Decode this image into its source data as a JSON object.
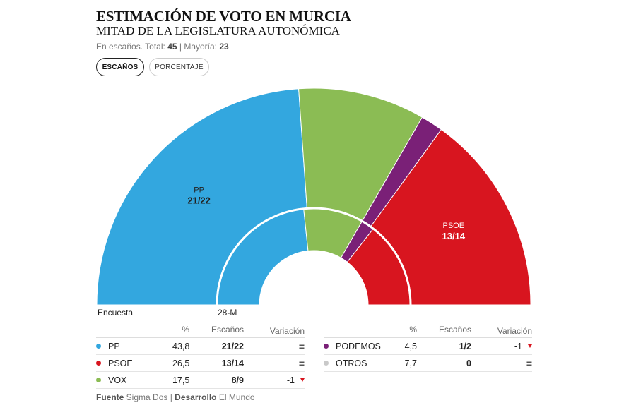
{
  "header": {
    "title": "ESTIMACIÓN DE VOTO EN MURCIA",
    "subtitle": "MITAD DE LA LEGISLATURA AUTONÓMICA",
    "meta_prefix": "En escaños. Total: ",
    "meta_total": "45",
    "meta_sep": " | Mayoría: ",
    "meta_majority": "23"
  },
  "toggle": {
    "active_label": "ESCAÑOS",
    "inactive_label": "PORCENTAJE"
  },
  "chart_data": {
    "type": "pie",
    "total_seats": 45,
    "majority": 23,
    "rings": [
      {
        "name": "Encuesta",
        "slices": [
          {
            "party": "PP",
            "seats": 21.5,
            "color": "#33a7df"
          },
          {
            "party": "VOX",
            "seats": 8.5,
            "color": "#8bbc54"
          },
          {
            "party": "PODEMOS",
            "seats": 1.5,
            "color": "#7a2077"
          },
          {
            "party": "PSOE",
            "seats": 13.5,
            "color": "#d8151f"
          }
        ]
      },
      {
        "name": "28-M",
        "slices": [
          {
            "party": "PP",
            "seats": 21,
            "color": "#33a7df"
          },
          {
            "party": "VOX",
            "seats": 9,
            "color": "#8bbc54"
          },
          {
            "party": "PODEMOS",
            "seats": 2,
            "color": "#7a2077"
          },
          {
            "party": "PSOE",
            "seats": 13,
            "color": "#d8151f"
          }
        ]
      }
    ],
    "slice_labels": [
      {
        "party": "PP",
        "name": "PP",
        "value": "21/22"
      },
      {
        "party": "PSOE",
        "name": "PSOE",
        "value": "13/14"
      }
    ]
  },
  "ring_labels": {
    "outer": "Encuesta",
    "inner": "28-M"
  },
  "table": {
    "headers": {
      "pct": "%",
      "seats": "Escaños",
      "variation": "Variación"
    },
    "left_rows": [
      {
        "party": "PP",
        "color": "#33a7df",
        "pct": "43,8",
        "seats": "21/22",
        "variation": "=",
        "down": false
      },
      {
        "party": "PSOE",
        "color": "#d8151f",
        "pct": "26,5",
        "seats": "13/14",
        "variation": "=",
        "down": false
      },
      {
        "party": "VOX",
        "color": "#8bbc54",
        "pct": "17,5",
        "seats": "8/9",
        "variation": "-1",
        "down": true
      }
    ],
    "right_rows": [
      {
        "party": "PODEMOS",
        "color": "#7a2077",
        "pct": "4,5",
        "seats": "1/2",
        "variation": "-1",
        "down": true
      },
      {
        "party": "OTROS",
        "color": "#c9c9c9",
        "pct": "7,7",
        "seats": "0",
        "variation": "=",
        "down": false
      }
    ]
  },
  "footer": {
    "source_label": "Fuente",
    "source_value": " Sigma Dos | ",
    "dev_label": "Desarrollo",
    "dev_value": " El Mundo"
  }
}
